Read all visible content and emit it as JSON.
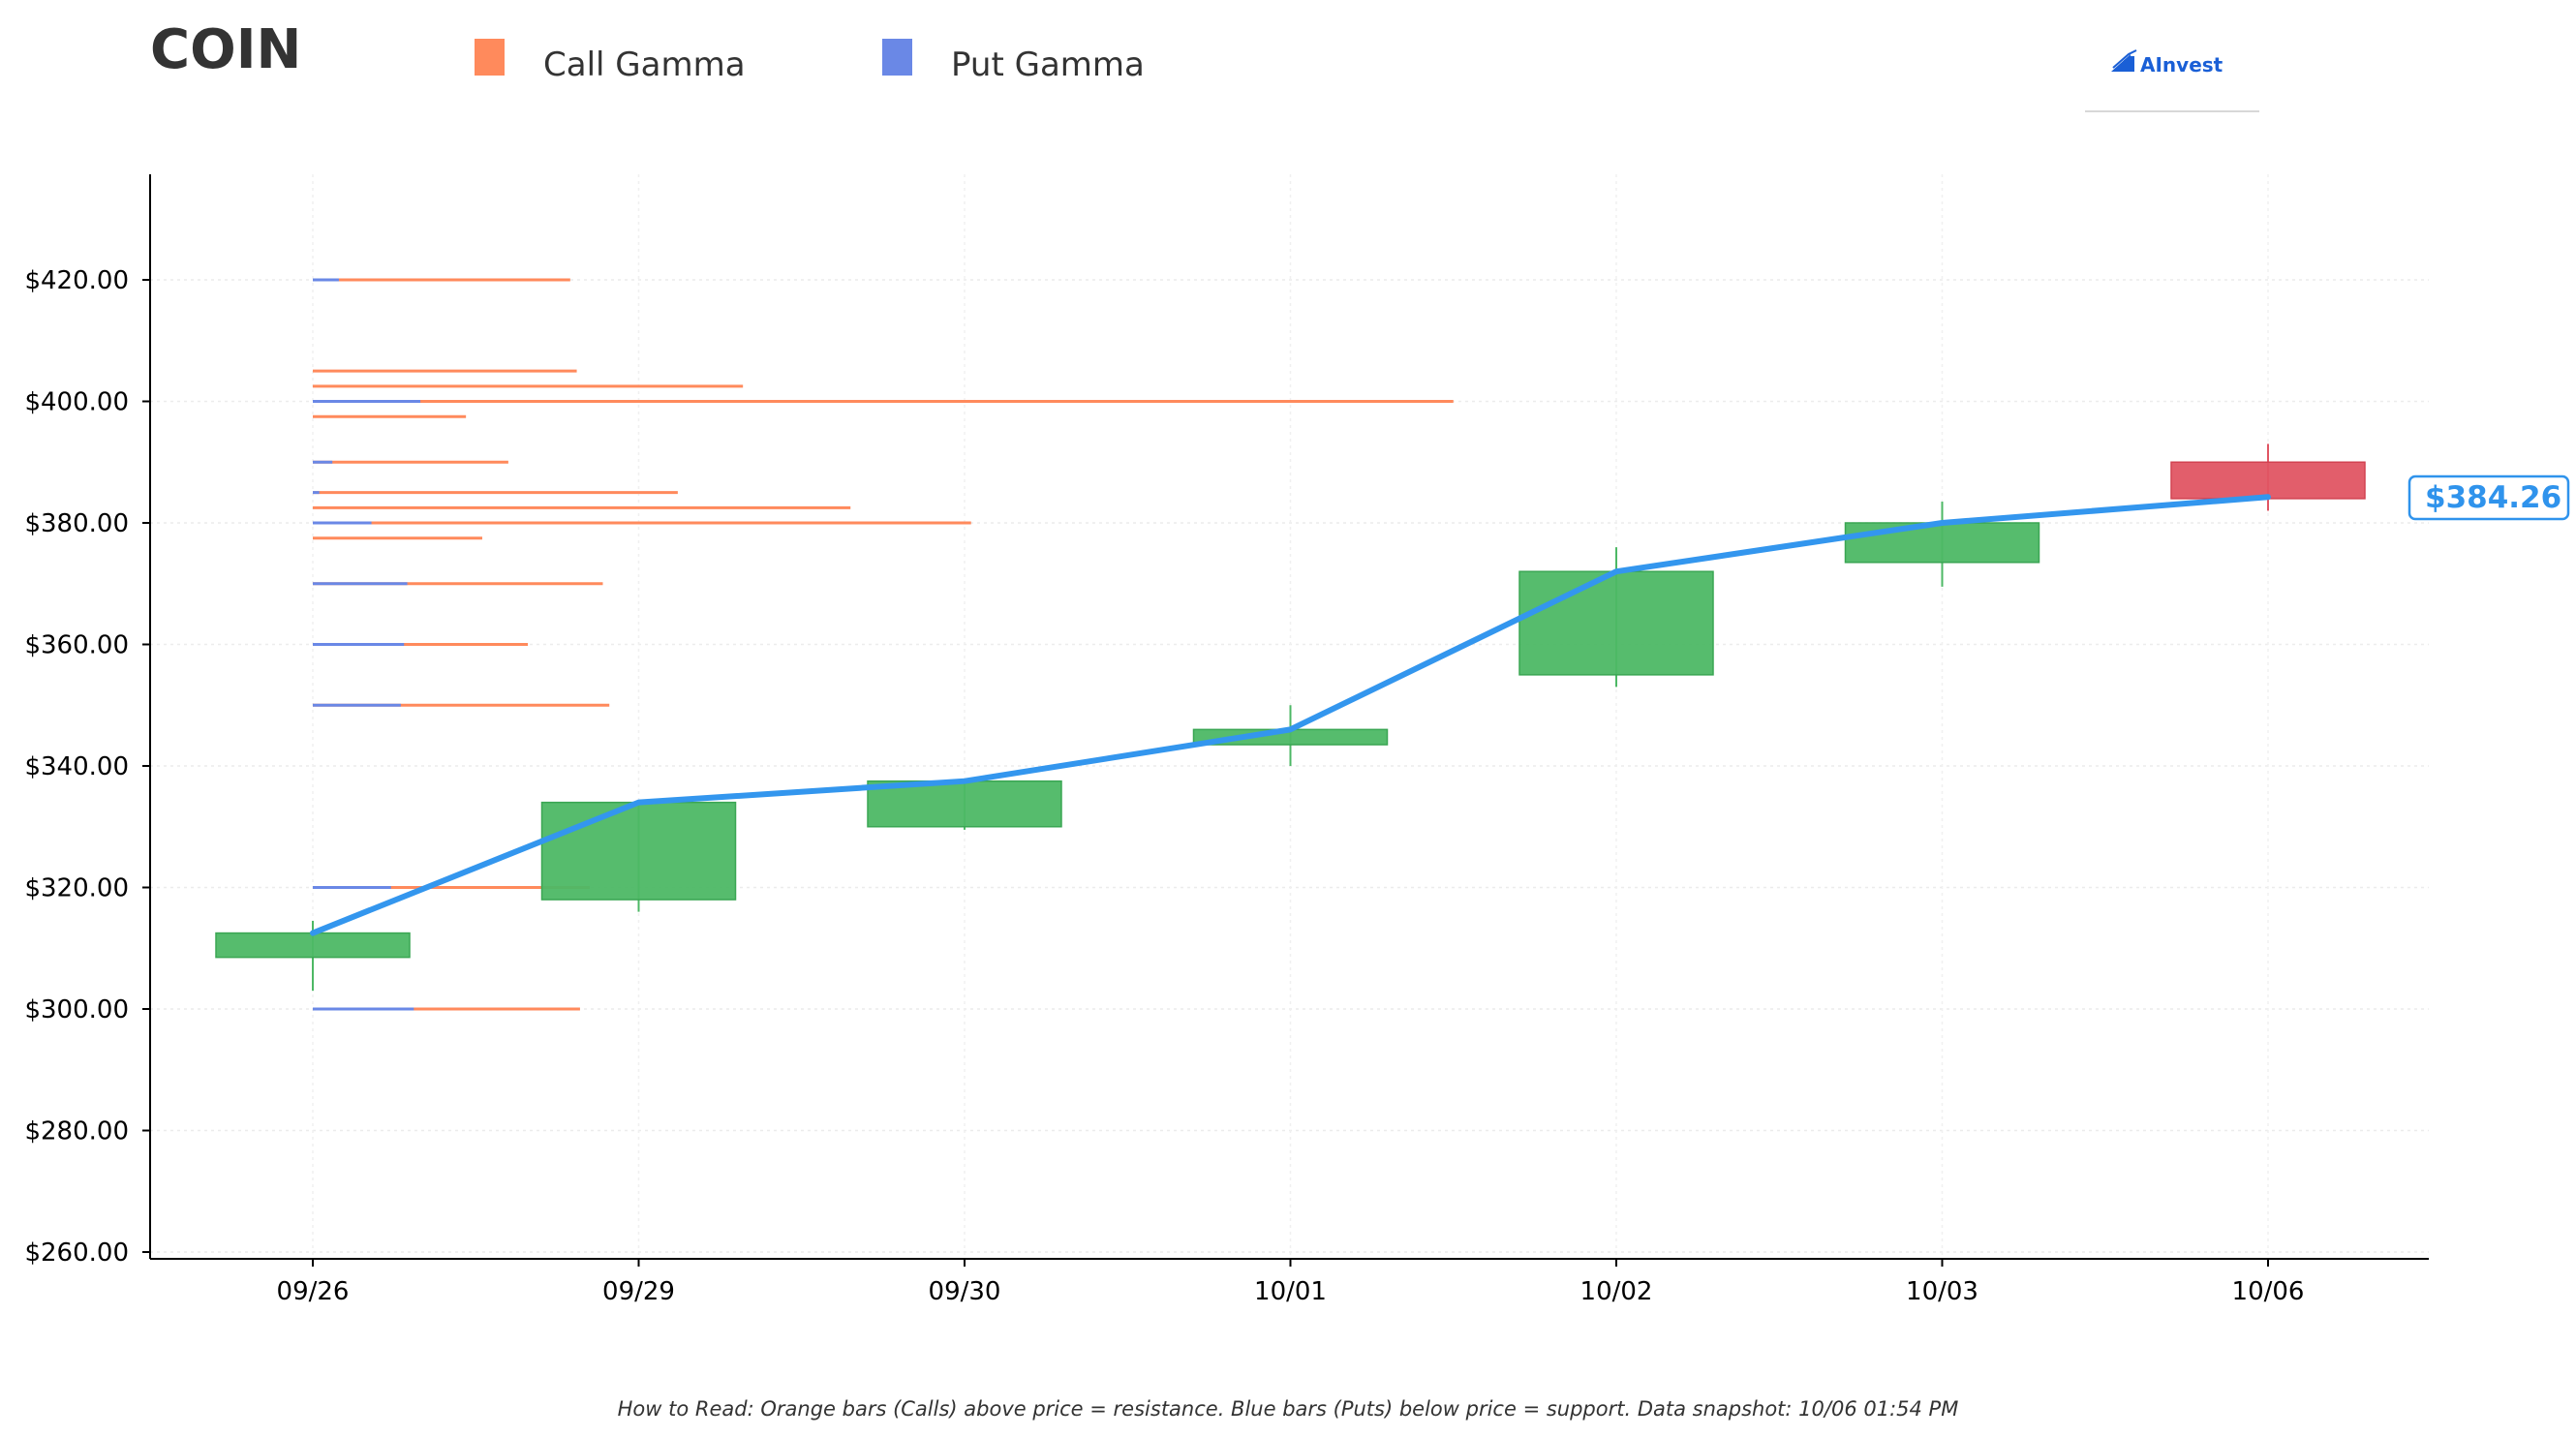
{
  "ticker": "COIN",
  "legend": [
    {
      "label": "Call Gamma",
      "color": "#ff8a5c"
    },
    {
      "label": "Put Gamma",
      "color": "#6a88e6"
    }
  ],
  "logo": {
    "text": "AInvest",
    "icon": "chart-arrow-icon"
  },
  "current_price_label": "$384.26",
  "footer_note": "How to Read: Orange bars (Calls) above price = resistance. Blue bars (Puts) below price = support. Data snapshot: 10/06 01:54 PM",
  "colors": {
    "up_candle": "#4db865",
    "down_candle": "#e05563",
    "price_line": "#3396ee",
    "call_bar": "#ff8a5c",
    "put_bar": "#6a88e6",
    "axis": "#000000",
    "grid": "#e6e6e6"
  },
  "chart_data": {
    "type": "candlestick",
    "title": "",
    "xlabel": "",
    "ylabel": "",
    "ylim": [
      258,
      438
    ],
    "yticks": [
      260,
      280,
      300,
      320,
      340,
      360,
      380,
      400,
      420
    ],
    "ytick_labels": [
      "$260.00",
      "$280.00",
      "$300.00",
      "$320.00",
      "$340.00",
      "$360.00",
      "$380.00",
      "$400.00",
      "$420.00"
    ],
    "categories": [
      "09/26",
      "09/29",
      "09/30",
      "10/01",
      "10/02",
      "10/03",
      "10/06"
    ],
    "candles": [
      {
        "date": "09/26",
        "open": 308.5,
        "high": 314.5,
        "low": 303,
        "close": 312.5
      },
      {
        "date": "09/29",
        "open": 318,
        "high": 334,
        "low": 316,
        "close": 334
      },
      {
        "date": "09/30",
        "open": 330,
        "high": 337.5,
        "low": 329.5,
        "close": 337.5
      },
      {
        "date": "10/01",
        "open": 343.5,
        "high": 350,
        "low": 340,
        "close": 346
      },
      {
        "date": "10/02",
        "open": 355,
        "high": 376,
        "low": 353,
        "close": 372
      },
      {
        "date": "10/03",
        "open": 373.5,
        "high": 383.5,
        "low": 369.5,
        "close": 380
      },
      {
        "date": "10/06",
        "open": 390,
        "high": 393,
        "low": 382,
        "close": 384
      }
    ],
    "price_line": {
      "name": "",
      "values": [
        312.5,
        334,
        337.5,
        346,
        372,
        380,
        384.26
      ]
    },
    "gamma_levels": {
      "x_unit": "trading days from 09/26",
      "call": [
        {
          "strike": 420,
          "extent": 0.79
        },
        {
          "strike": 405,
          "extent": 0.81
        },
        {
          "strike": 402.5,
          "extent": 1.32
        },
        {
          "strike": 400,
          "extent": 3.5
        },
        {
          "strike": 397.5,
          "extent": 0.47
        },
        {
          "strike": 390,
          "extent": 0.6
        },
        {
          "strike": 385,
          "extent": 1.12
        },
        {
          "strike": 382.5,
          "extent": 1.65
        },
        {
          "strike": 380,
          "extent": 2.02
        },
        {
          "strike": 377.5,
          "extent": 0.52
        },
        {
          "strike": 370,
          "extent": 0.89
        },
        {
          "strike": 360,
          "extent": 0.66
        },
        {
          "strike": 350,
          "extent": 0.91
        },
        {
          "strike": 320,
          "extent": 0.85
        },
        {
          "strike": 300,
          "extent": 0.82
        }
      ],
      "put": [
        {
          "strike": 420,
          "extent": 0.08
        },
        {
          "strike": 400,
          "extent": 0.33
        },
        {
          "strike": 390,
          "extent": 0.06
        },
        {
          "strike": 385,
          "extent": 0.02
        },
        {
          "strike": 380,
          "extent": 0.18
        },
        {
          "strike": 370,
          "extent": 0.29
        },
        {
          "strike": 360,
          "extent": 0.28
        },
        {
          "strike": 350,
          "extent": 0.27
        },
        {
          "strike": 320,
          "extent": 0.24
        },
        {
          "strike": 300,
          "extent": 0.31
        }
      ]
    },
    "grid": true,
    "legend_position": "top-left"
  }
}
